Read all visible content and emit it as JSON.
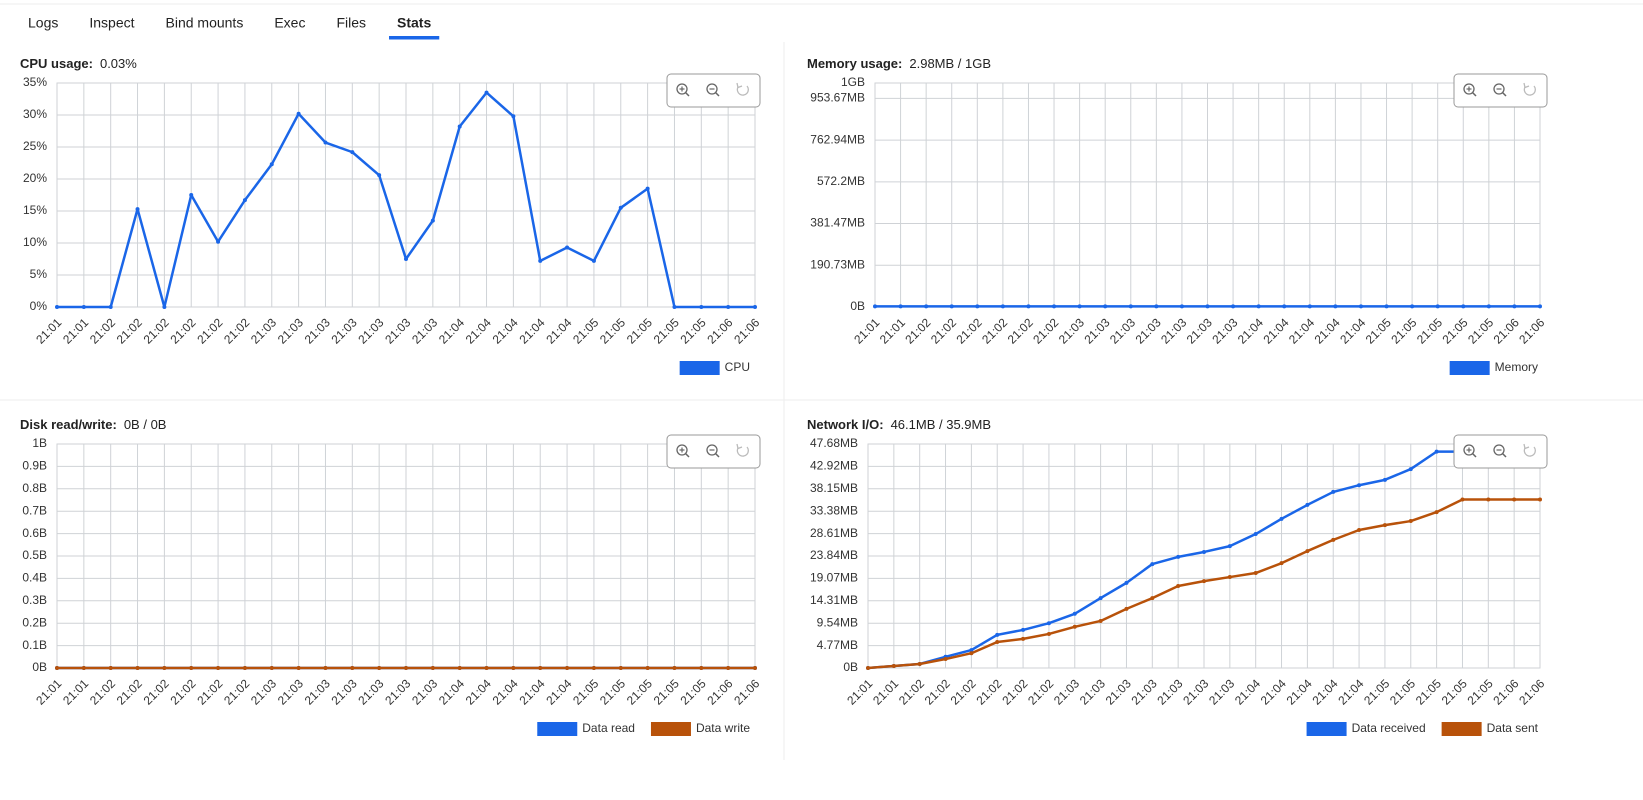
{
  "tabs": [
    {
      "label": "Logs",
      "active": false
    },
    {
      "label": "Inspect",
      "active": false
    },
    {
      "label": "Bind mounts",
      "active": false
    },
    {
      "label": "Exec",
      "active": false
    },
    {
      "label": "Files",
      "active": false
    },
    {
      "label": "Stats",
      "active": true
    }
  ],
  "chart_data": [
    {
      "type": "line",
      "title": "CPU usage:",
      "subtitle": "0.03%",
      "categories": [
        "21:01",
        "21:01",
        "21:02",
        "21:02",
        "21:02",
        "21:02",
        "21:02",
        "21:02",
        "21:03",
        "21:03",
        "21:03",
        "21:03",
        "21:03",
        "21:03",
        "21:03",
        "21:04",
        "21:04",
        "21:04",
        "21:04",
        "21:04",
        "21:05",
        "21:05",
        "21:05",
        "21:05",
        "21:05",
        "21:06",
        "21:06"
      ],
      "series": [
        {
          "name": "CPU",
          "color": "#1a66e8",
          "values": [
            0,
            0,
            0,
            15.3,
            0,
            17.5,
            10.2,
            16.7,
            22.3,
            30.2,
            25.7,
            24.2,
            20.6,
            7.5,
            13.5,
            28.2,
            33.5,
            29.8,
            7.2,
            9.3,
            7.2,
            15.5,
            18.5,
            0,
            0,
            0,
            0
          ]
        }
      ],
      "ylim": [
        0,
        35
      ],
      "yticks": [
        {
          "value": 0,
          "label": "0%"
        },
        {
          "value": 5,
          "label": "5%"
        },
        {
          "value": 10,
          "label": "10%"
        },
        {
          "value": 15,
          "label": "15%"
        },
        {
          "value": 20,
          "label": "20%"
        },
        {
          "value": 25,
          "label": "25%"
        },
        {
          "value": 30,
          "label": "30%"
        },
        {
          "value": 35,
          "label": "35%"
        }
      ],
      "grid": true,
      "legend": "bottom-right"
    },
    {
      "type": "line",
      "title": "Memory usage:",
      "subtitle": "2.98MB / 1GB",
      "categories": [
        "21:01",
        "21:01",
        "21:02",
        "21:02",
        "21:02",
        "21:02",
        "21:02",
        "21:02",
        "21:03",
        "21:03",
        "21:03",
        "21:03",
        "21:03",
        "21:03",
        "21:03",
        "21:04",
        "21:04",
        "21:04",
        "21:04",
        "21:04",
        "21:05",
        "21:05",
        "21:05",
        "21:05",
        "21:05",
        "21:06",
        "21:06"
      ],
      "series": [
        {
          "name": "Memory",
          "color": "#1a66e8",
          "values": [
            3125000,
            3125000,
            3125000,
            3125000,
            3125000,
            3125000,
            3125000,
            3125000,
            3125000,
            3125000,
            3125000,
            3125000,
            3125000,
            3125000,
            3125000,
            3125000,
            3125000,
            3125000,
            3125000,
            3125000,
            3125000,
            3125000,
            3125000,
            3125000,
            3125000,
            3125000,
            3125000
          ]
        }
      ],
      "ylim": [
        0,
        1073741824
      ],
      "yticks": [
        {
          "value": 0,
          "label": "0B"
        },
        {
          "value": 200000000,
          "label": "190.73MB"
        },
        {
          "value": 400000000,
          "label": "381.47MB"
        },
        {
          "value": 600000000,
          "label": "572.2MB"
        },
        {
          "value": 800000000,
          "label": "762.94MB"
        },
        {
          "value": 1000000000,
          "label": "953.67MB"
        },
        {
          "value": 1073741824,
          "label": "1GB"
        }
      ],
      "grid": true,
      "legend": "bottom-right"
    },
    {
      "type": "line",
      "title": "Disk read/write:",
      "subtitle": "0B / 0B",
      "categories": [
        "21:01",
        "21:01",
        "21:02",
        "21:02",
        "21:02",
        "21:02",
        "21:02",
        "21:02",
        "21:03",
        "21:03",
        "21:03",
        "21:03",
        "21:03",
        "21:03",
        "21:03",
        "21:04",
        "21:04",
        "21:04",
        "21:04",
        "21:04",
        "21:05",
        "21:05",
        "21:05",
        "21:05",
        "21:05",
        "21:06",
        "21:06"
      ],
      "series": [
        {
          "name": "Data read",
          "color": "#1a66e8",
          "values": [
            0,
            0,
            0,
            0,
            0,
            0,
            0,
            0,
            0,
            0,
            0,
            0,
            0,
            0,
            0,
            0,
            0,
            0,
            0,
            0,
            0,
            0,
            0,
            0,
            0,
            0,
            0
          ]
        },
        {
          "name": "Data write",
          "color": "#b8520a",
          "values": [
            0,
            0,
            0,
            0,
            0,
            0,
            0,
            0,
            0,
            0,
            0,
            0,
            0,
            0,
            0,
            0,
            0,
            0,
            0,
            0,
            0,
            0,
            0,
            0,
            0,
            0,
            0
          ]
        }
      ],
      "ylim": [
        0,
        1
      ],
      "yticks": [
        {
          "value": 0,
          "label": "0B"
        },
        {
          "value": 0.1,
          "label": "0.1B"
        },
        {
          "value": 0.2,
          "label": "0.2B"
        },
        {
          "value": 0.3,
          "label": "0.3B"
        },
        {
          "value": 0.4,
          "label": "0.4B"
        },
        {
          "value": 0.5,
          "label": "0.5B"
        },
        {
          "value": 0.6,
          "label": "0.6B"
        },
        {
          "value": 0.7,
          "label": "0.7B"
        },
        {
          "value": 0.8,
          "label": "0.8B"
        },
        {
          "value": 0.9,
          "label": "0.9B"
        },
        {
          "value": 1,
          "label": "1B"
        }
      ],
      "grid": true,
      "legend": "bottom-right"
    },
    {
      "type": "line",
      "title": "Network I/O:",
      "subtitle": "46.1MB / 35.9MB",
      "categories": [
        "21:01",
        "21:01",
        "21:02",
        "21:02",
        "21:02",
        "21:02",
        "21:02",
        "21:02",
        "21:03",
        "21:03",
        "21:03",
        "21:03",
        "21:03",
        "21:03",
        "21:03",
        "21:04",
        "21:04",
        "21:04",
        "21:04",
        "21:04",
        "21:05",
        "21:05",
        "21:05",
        "21:05",
        "21:05",
        "21:06",
        "21:06"
      ],
      "series": [
        {
          "name": "Data received",
          "color": "#1a66e8",
          "values": [
            0,
            450000,
            900000,
            2500000,
            4000000,
            7400000,
            8500000,
            10000000,
            12100000,
            15600000,
            19000000,
            23200000,
            24800000,
            25900000,
            27200000,
            29900000,
            33300000,
            36400000,
            39300000,
            40800000,
            42000000,
            44400000,
            48300000,
            48300000,
            48300000,
            48300000,
            48300000
          ]
        },
        {
          "name": "Data sent",
          "color": "#b8520a",
          "values": [
            0,
            450000,
            900000,
            2000000,
            3300000,
            5800000,
            6500000,
            7600000,
            9200000,
            10500000,
            13200000,
            15600000,
            18300000,
            19400000,
            20300000,
            21200000,
            23400000,
            26100000,
            28600000,
            30800000,
            31900000,
            32800000,
            34800000,
            37600000,
            37600000,
            37600000,
            37600000
          ]
        }
      ],
      "ylim": [
        0,
        50000000
      ],
      "yticks": [
        {
          "value": 0,
          "label": "0B"
        },
        {
          "value": 5000000,
          "label": "4.77MB"
        },
        {
          "value": 10000000,
          "label": "9.54MB"
        },
        {
          "value": 15000000,
          "label": "14.31MB"
        },
        {
          "value": 20000000,
          "label": "19.07MB"
        },
        {
          "value": 25000000,
          "label": "23.84MB"
        },
        {
          "value": 30000000,
          "label": "28.61MB"
        },
        {
          "value": 35000000,
          "label": "33.38MB"
        },
        {
          "value": 40000000,
          "label": "38.15MB"
        },
        {
          "value": 45000000,
          "label": "42.92MB"
        },
        {
          "value": 50000000,
          "label": "47.68MB"
        }
      ],
      "grid": true,
      "legend": "bottom-right"
    }
  ]
}
